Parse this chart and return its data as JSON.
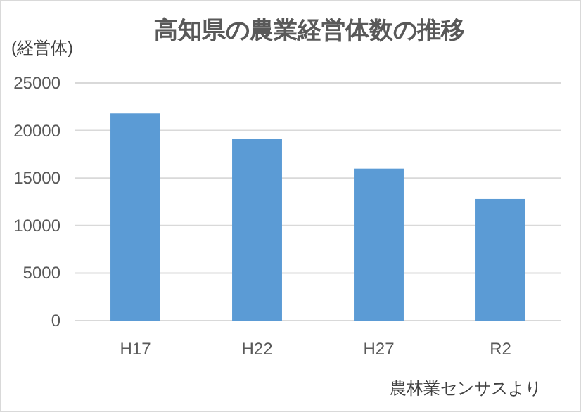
{
  "chart_data": {
    "type": "bar",
    "title": "高知県の農業経営体数の推移",
    "ylabel": "(経営体)",
    "categories": [
      "H17",
      "H22",
      "H27",
      "R2"
    ],
    "values": [
      21800,
      19100,
      16000,
      12800
    ],
    "color": "#5b9bd5",
    "ylim": [
      0,
      25000
    ],
    "yticks": [
      0,
      5000,
      10000,
      15000,
      20000,
      25000
    ],
    "grid": "y",
    "annotations": [
      "農林業センサスより"
    ]
  }
}
